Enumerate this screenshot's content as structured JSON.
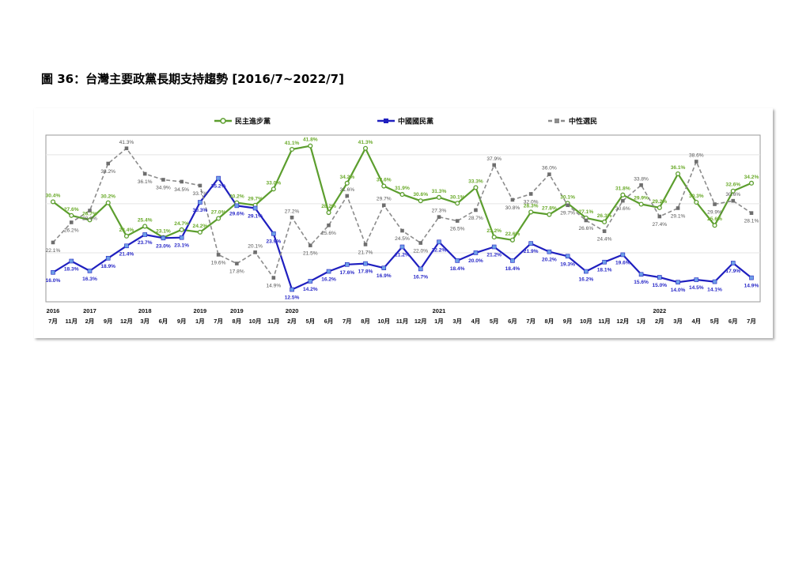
{
  "figure": {
    "title": "圖 36：台灣主要政黨長期支持趨勢 [2016/7~2022/7]"
  },
  "chart_data": {
    "type": "line",
    "title": "",
    "xlabel": "",
    "ylabel": "",
    "ylim": [
      10,
      44
    ],
    "legend_position": "top",
    "grid": true,
    "x": [
      "2016/7",
      "2016/11",
      "2017/2",
      "2017/9",
      "2017/12",
      "2018/3",
      "2018/6",
      "2018/9",
      "2019/1",
      "2019/7",
      "2019/8",
      "2019/10",
      "2019/11",
      "2020/2",
      "2020/5",
      "2020/6",
      "2020/7",
      "2020/8",
      "2020/10",
      "2020/11",
      "2020/12",
      "2021/1",
      "2021/3",
      "2021/4",
      "2021/5",
      "2021/6",
      "2021/7",
      "2021/8",
      "2021/9",
      "2021/10",
      "2021/11",
      "2021/12",
      "2022/1",
      "2022/2",
      "2022/3",
      "2022/4",
      "2022/5",
      "2022/6",
      "2022/7"
    ],
    "month_labels": [
      "7月",
      "11月",
      "2月",
      "9月",
      "12月",
      "3月",
      "6月",
      "9月",
      "1月",
      "7月",
      "8月",
      "10月",
      "11月",
      "2月",
      "5月",
      "6月",
      "7月",
      "8月",
      "10月",
      "11月",
      "12月",
      "1月",
      "3月",
      "4月",
      "5月",
      "6月",
      "7月",
      "8月",
      "9月",
      "10月",
      "11月",
      "12月",
      "1月",
      "2月",
      "3月",
      "4月",
      "5月",
      "6月",
      "7月"
    ],
    "year_labels": [
      {
        "index": 0,
        "label": "2016"
      },
      {
        "index": 2,
        "label": "2017"
      },
      {
        "index": 5,
        "label": "2018"
      },
      {
        "index": 8,
        "label": "2019"
      },
      {
        "index": 10,
        "label": "2019"
      },
      {
        "index": 13,
        "label": "2020"
      },
      {
        "index": 21,
        "label": "2021"
      },
      {
        "index": 33,
        "label": "2022"
      }
    ],
    "series": [
      {
        "name": "民主進步黨",
        "color": "#5c9e2e",
        "label_color": "#6aaa2a",
        "marker": "circle",
        "dash": "",
        "values": [
          30.4,
          27.6,
          26.7,
          30.2,
          23.4,
          25.4,
          23.1,
          24.7,
          24.2,
          27.0,
          30.2,
          29.7,
          33.0,
          41.1,
          41.8,
          28.2,
          34.2,
          41.3,
          33.6,
          31.9,
          30.6,
          31.3,
          30.1,
          33.3,
          23.2,
          22.6,
          28.3,
          27.8,
          30.1,
          27.1,
          26.3,
          31.8,
          29.9,
          29.2,
          36.1,
          30.3,
          25.6,
          32.6,
          34.2
        ]
      },
      {
        "name": "中國國民黨",
        "color": "#1f1fbf",
        "label_color": "#2a2ac8",
        "marker": "square",
        "dash": "",
        "values": [
          16.0,
          18.3,
          16.3,
          18.9,
          21.4,
          23.7,
          23.0,
          23.1,
          30.3,
          35.2,
          29.6,
          29.1,
          23.9,
          12.5,
          14.2,
          16.2,
          17.6,
          17.8,
          16.9,
          21.2,
          16.7,
          22.2,
          18.4,
          20.0,
          21.2,
          18.4,
          21.9,
          20.2,
          19.3,
          16.2,
          18.1,
          19.6,
          15.6,
          15.0,
          14.0,
          14.5,
          14.1,
          17.9,
          14.9
        ]
      },
      {
        "name": "中性選民",
        "color": "#8c8c8c",
        "label_color": "#555555",
        "marker": "square",
        "dash": "5,3",
        "values": [
          22.1,
          26.2,
          28.6,
          38.2,
          41.3,
          36.1,
          34.9,
          34.5,
          33.7,
          19.6,
          17.8,
          20.1,
          14.9,
          27.2,
          21.5,
          25.6,
          31.6,
          21.7,
          29.7,
          24.5,
          22.0,
          27.3,
          26.5,
          28.7,
          37.9,
          30.8,
          32.0,
          36.0,
          29.7,
          26.6,
          24.4,
          30.6,
          33.8,
          27.4,
          29.1,
          38.6,
          29.9,
          30.6,
          28.1
        ]
      }
    ]
  }
}
